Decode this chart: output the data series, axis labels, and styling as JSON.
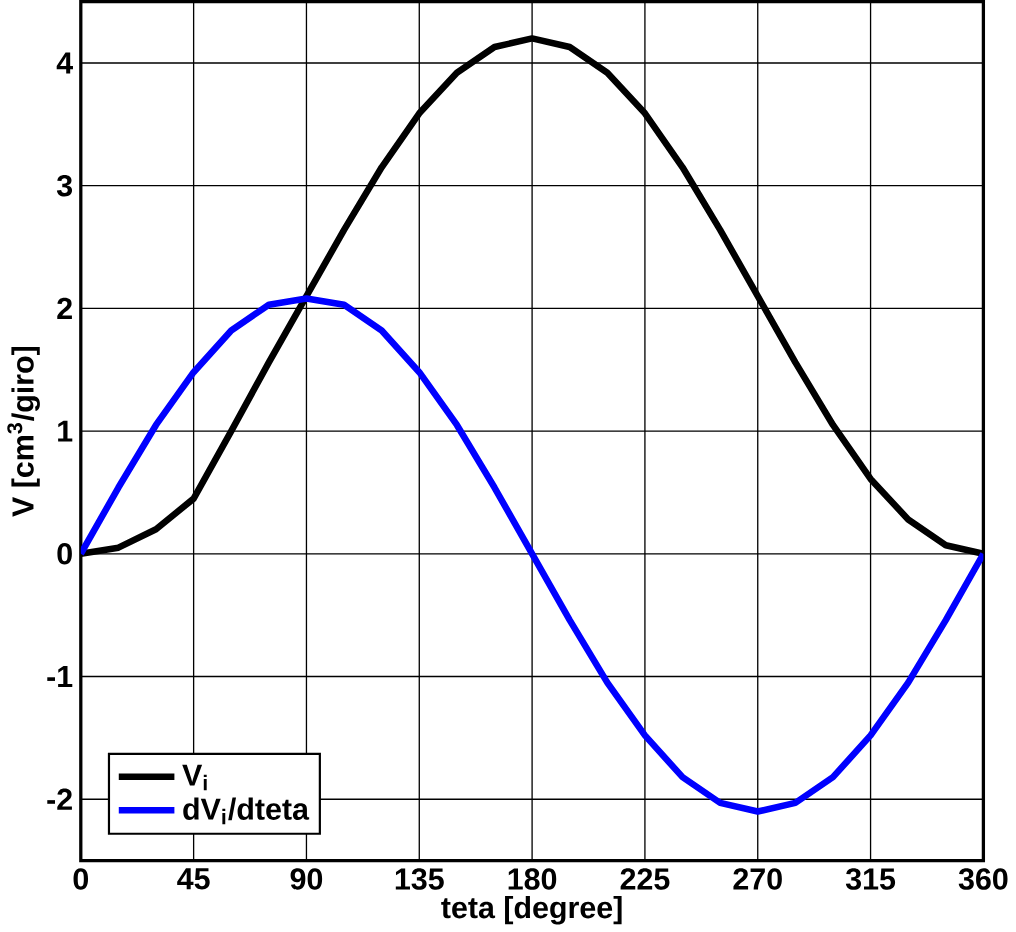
{
  "chart_data": {
    "type": "line",
    "xlabel": "teta [degree]",
    "ylabel": "V [cm$^{3}$/giro]",
    "xlim": [
      0,
      360
    ],
    "ylim": [
      -2.5,
      4.5
    ],
    "xticks": [
      0,
      45,
      90,
      135,
      180,
      225,
      270,
      315,
      360
    ],
    "yticks": [
      -2,
      -1,
      0,
      1,
      2,
      3,
      4
    ],
    "grid": true,
    "legend": "bottom left",
    "marker": "none",
    "line_style": "solid",
    "series": [
      {
        "name": "V$_{i}$",
        "color": "#000000",
        "x": [
          0,
          15,
          30,
          45,
          60,
          75,
          90,
          105,
          120,
          135,
          150,
          165,
          180,
          195,
          210,
          225,
          240,
          255,
          270,
          285,
          300,
          315,
          330,
          345,
          360
        ],
        "values": [
          0,
          0.05,
          0.2,
          0.45,
          1.0,
          1.56,
          2.1,
          2.64,
          3.15,
          3.59,
          3.92,
          4.13,
          4.2,
          4.13,
          3.92,
          3.59,
          3.15,
          2.64,
          2.1,
          1.56,
          1.05,
          0.61,
          0.28,
          0.07,
          0
        ]
      },
      {
        "name": "dV$_{i}$/dteta",
        "color": "#0000ff",
        "x": [
          0,
          15,
          30,
          45,
          60,
          75,
          90,
          105,
          120,
          135,
          150,
          165,
          180,
          195,
          210,
          225,
          240,
          255,
          270,
          285,
          300,
          315,
          330,
          345,
          360
        ],
        "values": [
          0,
          0.54,
          1.05,
          1.48,
          1.82,
          2.03,
          2.08,
          2.03,
          1.82,
          1.48,
          1.05,
          0.54,
          0,
          -0.54,
          -1.05,
          -1.48,
          -1.82,
          -2.03,
          -2.1,
          -2.03,
          -1.82,
          -1.48,
          -1.05,
          -0.54,
          0
        ]
      }
    ]
  }
}
